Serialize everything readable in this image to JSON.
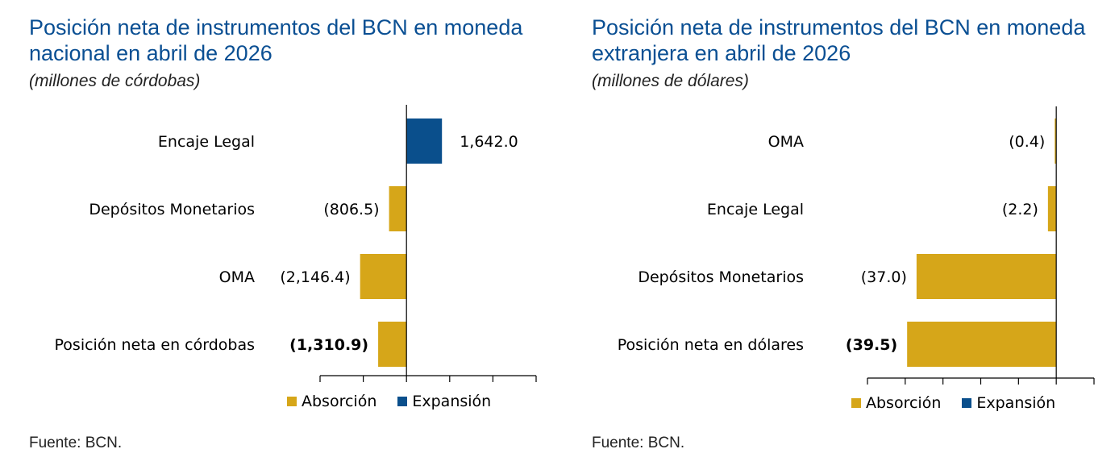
{
  "legend": {
    "absorption": "Absorción",
    "expansion": "Expansión"
  },
  "colors": {
    "absorption": "#d6a619",
    "expansion": "#0a4f8c",
    "title": "#0a4f93"
  },
  "source": "Fuente: BCN.",
  "chart_data": [
    {
      "type": "bar",
      "orientation": "horizontal",
      "title": "Posición neta de instrumentos del BCN en moneda nacional en abril de 2026",
      "subtitle": "(millones de córdobas)",
      "categories": [
        "Encaje Legal",
        "Depósitos Monetarios",
        "OMA",
        "Posición neta en córdobas"
      ],
      "values": [
        1642.0,
        -806.5,
        -2146.4,
        -1310.9
      ],
      "value_labels": [
        "1,642.0",
        "(806.5)",
        "(2,146.4)",
        "(1,310.9)"
      ],
      "series_type": [
        "expansion",
        "absorption",
        "absorption",
        "absorption"
      ],
      "bold_last": true,
      "xlim": [
        -4000,
        6000
      ],
      "tick_step": 2000,
      "legend": [
        "Absorción",
        "Expansión"
      ],
      "grid": false
    },
    {
      "type": "bar",
      "orientation": "horizontal",
      "title": "Posición neta de instrumentos del BCN en moneda extranjera en abril de 2026",
      "subtitle": "(millones de dólares)",
      "categories": [
        "OMA",
        "Encaje Legal",
        "Depósitos Monetarios",
        "Posición neta en dólares"
      ],
      "values": [
        -0.4,
        -2.2,
        -37.0,
        -39.5
      ],
      "value_labels": [
        "(0.4)",
        "(2.2)",
        "(37.0)",
        "(39.5)"
      ],
      "series_type": [
        "absorption",
        "absorption",
        "absorption",
        "absorption"
      ],
      "bold_last": true,
      "xlim": [
        -50,
        10
      ],
      "tick_step": 10,
      "legend": [
        "Absorción",
        "Expansión"
      ],
      "grid": false
    }
  ]
}
